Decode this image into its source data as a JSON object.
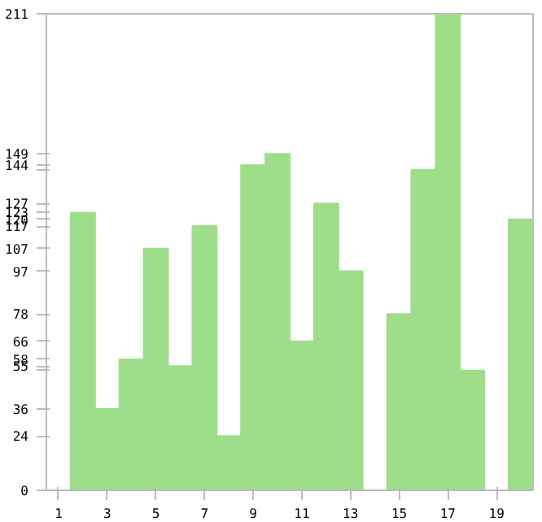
{
  "chart_data": {
    "type": "bar",
    "x": [
      1,
      2,
      3,
      4,
      5,
      6,
      7,
      8,
      9,
      10,
      11,
      12,
      13,
      14,
      15,
      16,
      17,
      18,
      19,
      20
    ],
    "values": [
      0,
      123,
      36,
      58,
      107,
      55,
      117,
      24,
      144,
      149,
      66,
      127,
      97,
      0,
      78,
      142,
      211,
      53,
      0,
      120
    ],
    "color": "#9ede8a",
    "xlim": [
      0.5,
      20.5
    ],
    "xticks": [
      1,
      3,
      5,
      7,
      9,
      11,
      13,
      15,
      17,
      19
    ],
    "ylim": [
      0,
      211
    ],
    "yticks": [
      0,
      24,
      36,
      {
        "value": 53,
        "label": null
      },
      55,
      58,
      66,
      78,
      97,
      107,
      117,
      120,
      123,
      127,
      {
        "value": 142,
        "label": null
      },
      144,
      149,
      211
    ],
    "grid": false
  }
}
